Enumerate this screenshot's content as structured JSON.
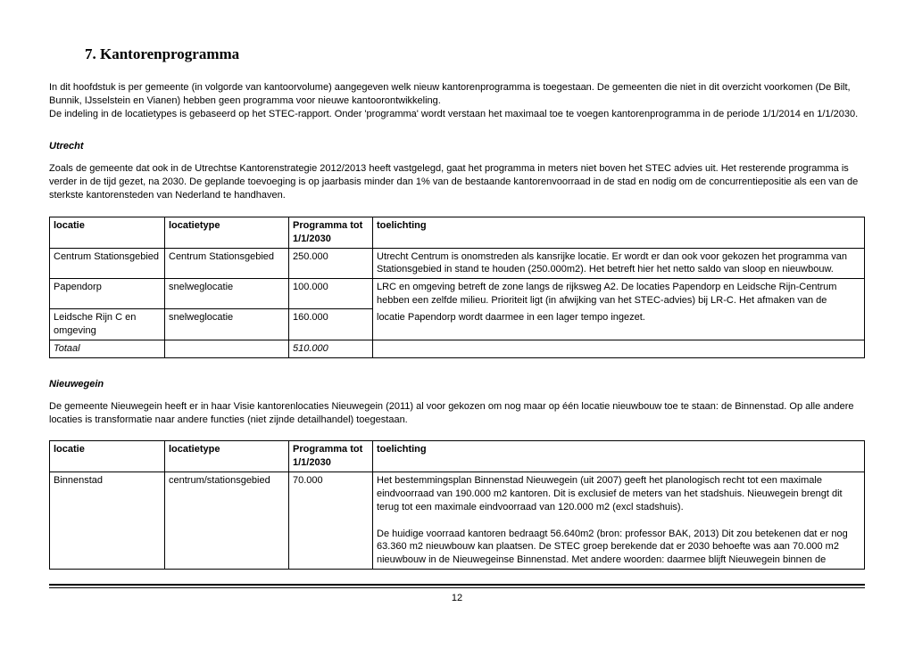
{
  "heading": "7. Kantorenprogramma",
  "intro": "In dit hoofdstuk is per gemeente (in volgorde van kantoorvolume) aangegeven welk nieuw kantorenprogramma is toegestaan. De gemeenten die niet in dit overzicht voorkomen (De Bilt, Bunnik, IJsselstein en Vianen) hebben geen programma voor nieuwe kantoorontwikkeling.\nDe indeling in de locatietypes is gebaseerd op het STEC-rapport. Onder 'programma' wordt verstaan het maximaal toe te voegen kantorenprogramma in de periode 1/1/2014 en 1/1/2030.",
  "utrecht": {
    "title": "Utrecht",
    "para": "Zoals de gemeente dat ook in de Utrechtse Kantorenstrategie 2012/2013 heeft vastgelegd, gaat het programma in meters niet boven het STEC advies uit. Het resterende programma is verder in de tijd gezet, na 2030. De geplande toevoeging is op jaarbasis minder dan 1% van de bestaande kantorenvoorraad in de stad en nodig om de concurrentiepositie als een van de sterkste kantorensteden van Nederland te handhaven.",
    "columns": [
      "locatie",
      "locatietype",
      "Programma tot 1/1/2030",
      "toelichting"
    ],
    "rows": [
      {
        "locatie": "Centrum Stationsgebied",
        "type": "Centrum Stationsgebied",
        "prog": "250.000",
        "toelicht": "Utrecht Centrum is onomstreden als kansrijke locatie. Er wordt er dan ook voor gekozen het programma van Stationsgebied in stand te houden (250.000m2). Het betreft hier het netto saldo van sloop en nieuwbouw."
      },
      {
        "locatie": "Papendorp",
        "type": "snelweglocatie",
        "prog": "100.000",
        "toelicht": "LRC en omgeving betreft de zone langs de rijksweg A2. De locaties Papendorp en Leidsche Rijn-Centrum hebben een zelfde milieu. Prioriteit ligt (in afwijking van het STEC-advies) bij LR-C. Het afmaken van de",
        "rowspan_toelicht": 2
      },
      {
        "locatie": "Leidsche Rijn C en omgeving",
        "type": "snelweglocatie",
        "prog": "160.000",
        "toelicht": "locatie Papendorp wordt daarmee in een lager tempo ingezet."
      }
    ],
    "total_label": "Totaal",
    "total_value": "510.000"
  },
  "nieuwegein": {
    "title": "Nieuwegein",
    "para": "De gemeente Nieuwegein heeft er in haar Visie kantorenlocaties Nieuwegein (2011) al voor gekozen om nog maar op één locatie nieuwbouw toe te staan: de Binnenstad. Op alle andere locaties is transformatie naar andere functies (niet zijnde detailhandel) toegestaan.",
    "columns": [
      "locatie",
      "locatietype",
      "Programma tot 1/1/2030",
      "toelichting"
    ],
    "rows": [
      {
        "locatie": "Binnenstad",
        "type": "centrum/stationsgebied",
        "prog": "70.000",
        "toelicht": "Het bestemmingsplan Binnenstad Nieuwegein (uit 2007) geeft het planologisch recht tot een maximale eindvoorraad van 190.000 m2 kantoren. Dit is exclusief de meters van het stadshuis. Nieuwegein brengt dit terug tot een maximale eindvoorraad van 120.000 m2 (excl stadshuis).\n\nDe huidige voorraad kantoren bedraagt 56.640m2 (bron: professor BAK, 2013) Dit zou betekenen dat er nog 63.360 m2 nieuwbouw kan plaatsen. De STEC groep berekende dat er 2030 behoefte was aan 70.000 m2 nieuwbouw in de Nieuwegeinse Binnenstad. Met andere woorden: daarmee blijft Nieuwegein binnen de"
      }
    ]
  },
  "page_number": "12"
}
